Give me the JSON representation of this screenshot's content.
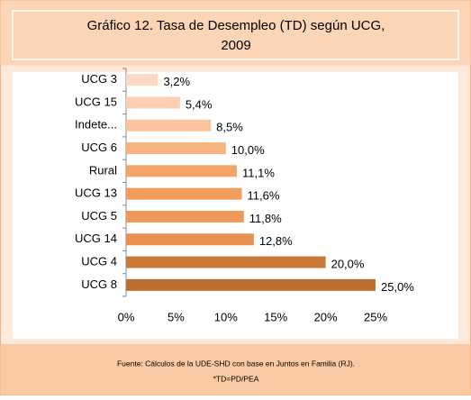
{
  "chart_data": {
    "type": "hbar",
    "title": [
      "Gráfico 12. Tasa de Desempleo (TD) según UCG,",
      "2009"
    ],
    "categories": [
      "UCG 3",
      "UCG 15",
      "Indete...",
      "UCG 6",
      "Rural",
      "UCG 13",
      "UCG 5",
      "UCG 14",
      "UCG 4",
      "UCG 8"
    ],
    "values": [
      3.2,
      5.4,
      8.5,
      10.0,
      11.1,
      11.6,
      11.8,
      12.8,
      20.0,
      25.0
    ],
    "value_labels": [
      "3,2%",
      "5,4%",
      "8,5%",
      "10,0%",
      "11,1%",
      "11,6%",
      "11,8%",
      "12,8%",
      "20,0%",
      "25,0%"
    ],
    "colors": [
      "#fcd9c6",
      "#fbcfb2",
      "#f9c49e",
      "#f6b27f",
      "#f4a468",
      "#f29d5e",
      "#f09858",
      "#e99051",
      "#c9793a",
      "#bd6f32"
    ],
    "xlim": [
      0,
      25
    ],
    "xticks": [
      {
        "value": 0,
        "label": "0%"
      },
      {
        "value": 5,
        "label": "5%"
      },
      {
        "value": 10,
        "label": "10%"
      },
      {
        "value": 15,
        "label": "15%"
      },
      {
        "value": 20,
        "label": "20%"
      },
      {
        "value": 25,
        "label": "25%"
      }
    ],
    "footnotes": [
      "Fuente: Cálculos de la UDE-SHD con base en Juntos en Familia (RJ).",
      "*TD=PD/PEA"
    ]
  }
}
